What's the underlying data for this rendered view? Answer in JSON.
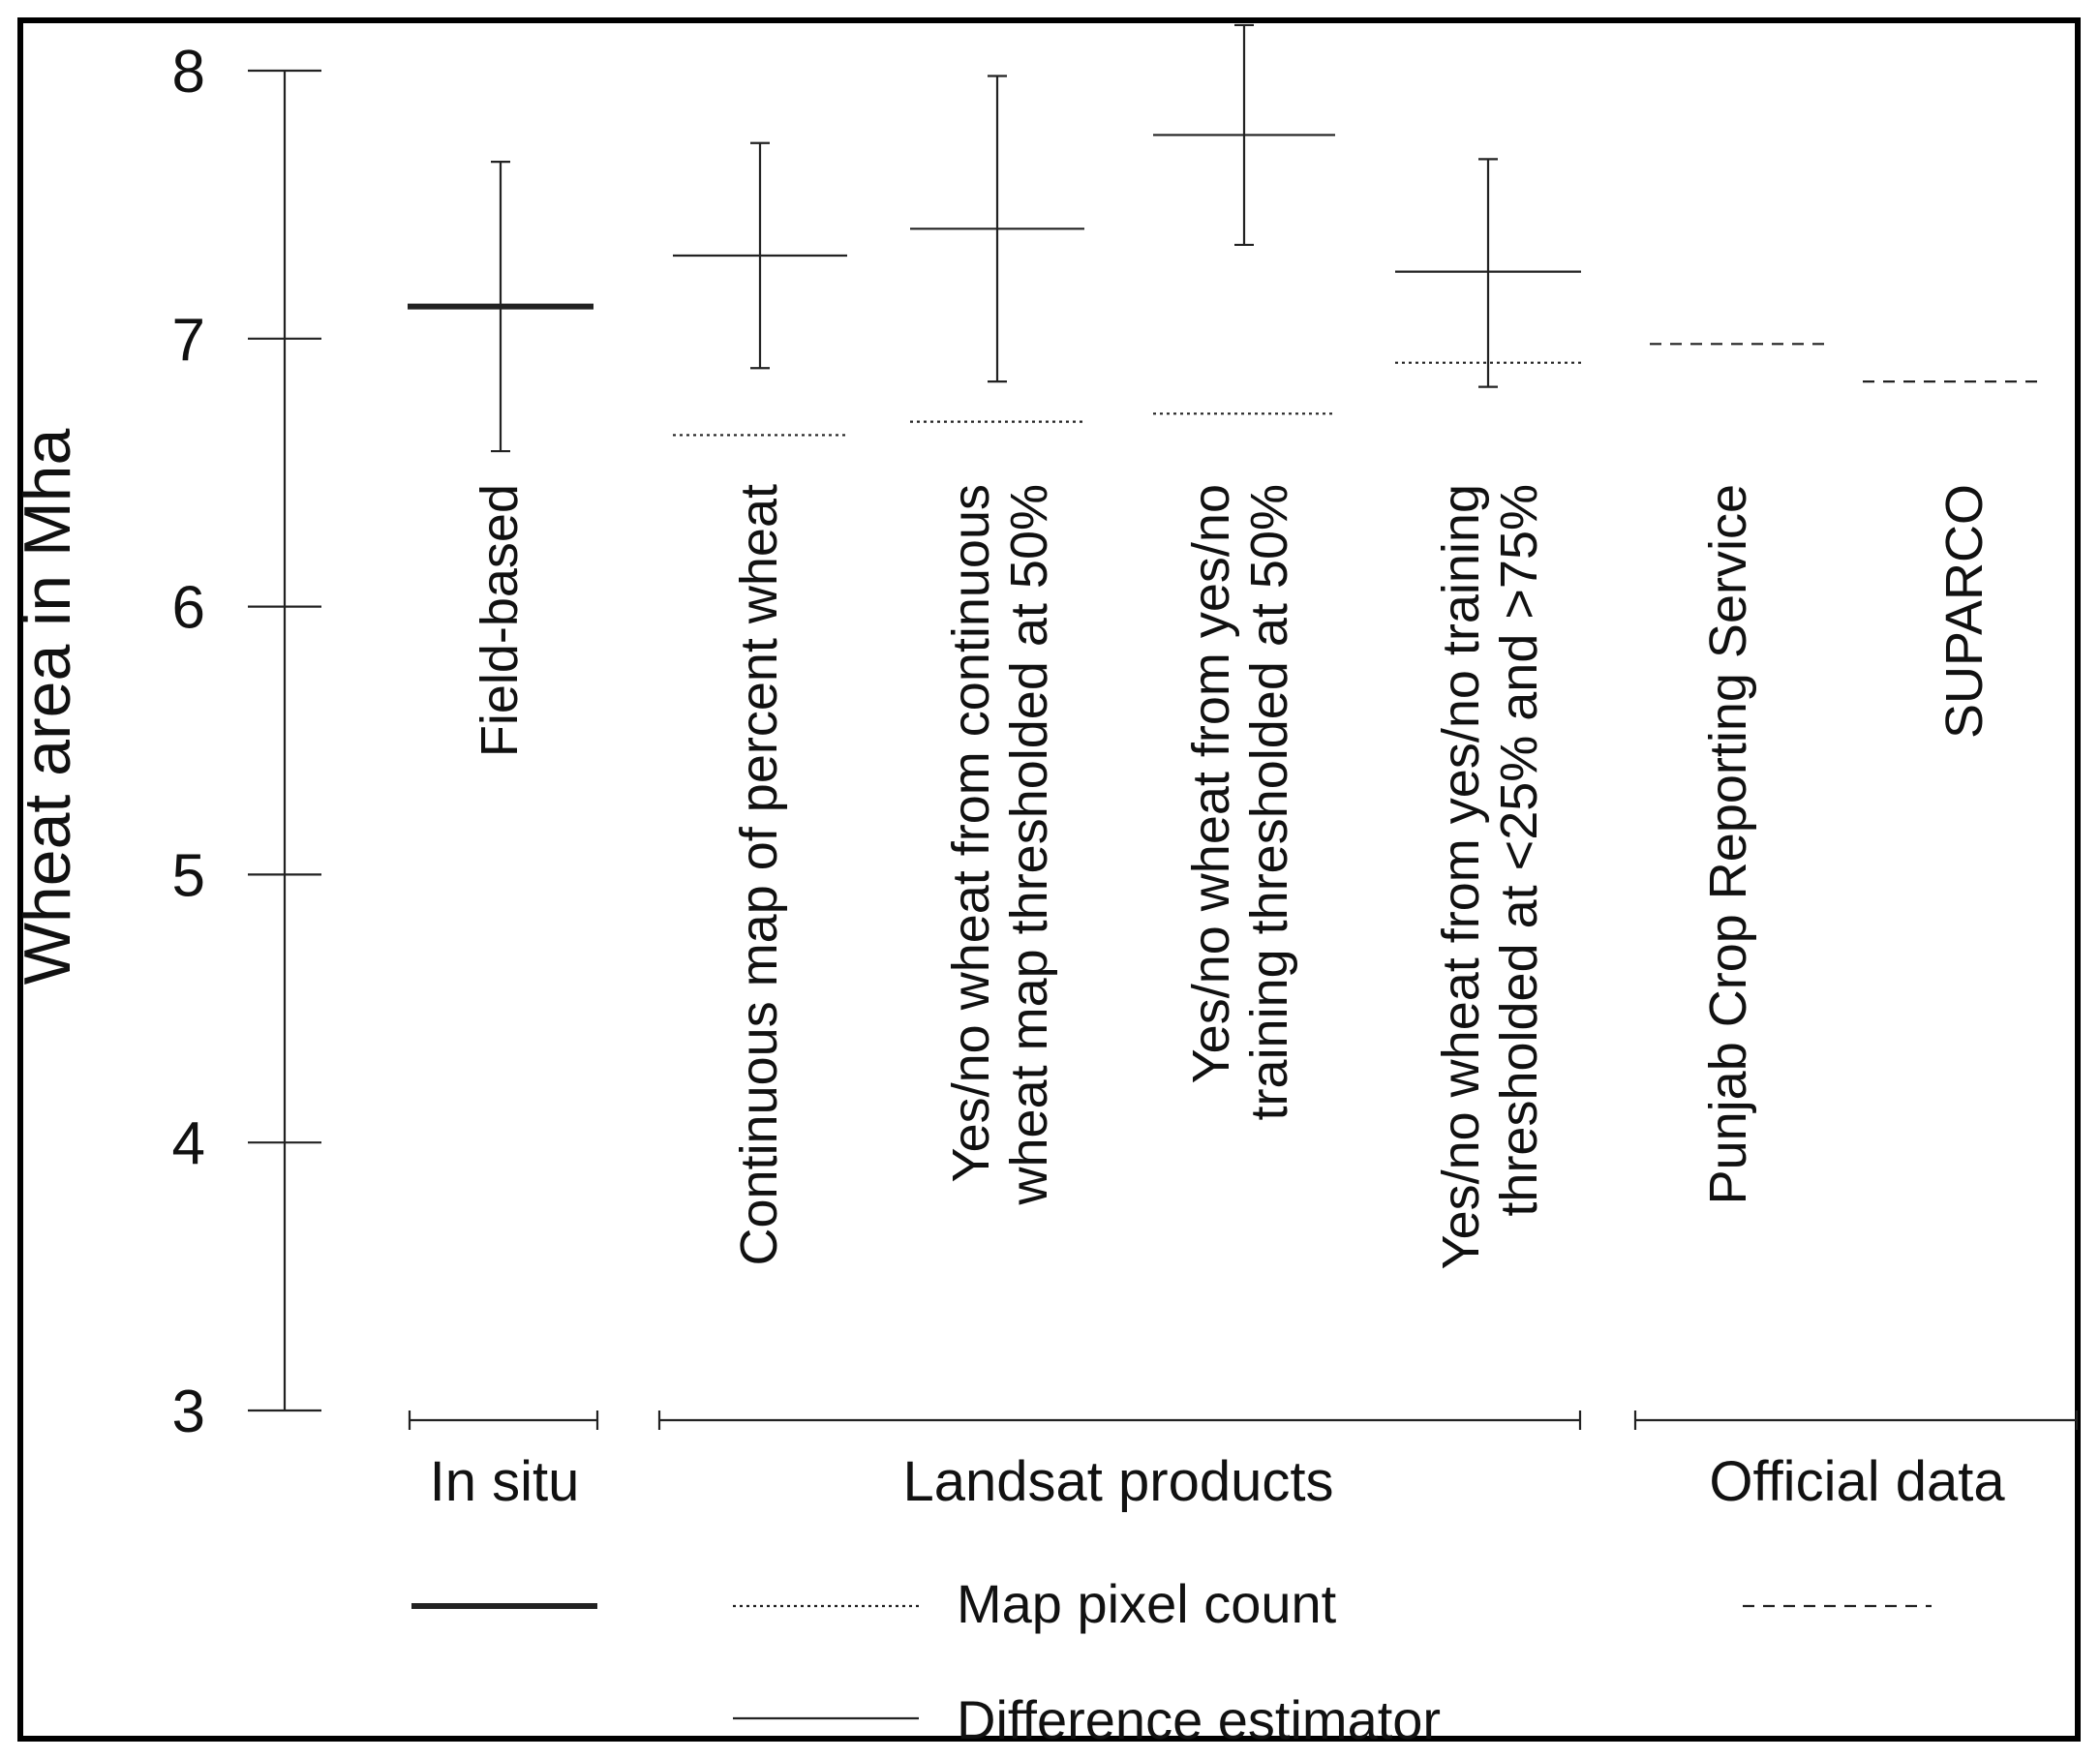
{
  "chart_data": {
    "type": "interval",
    "ylabel": "Wheat area in Mha",
    "ylim": [
      3,
      8
    ],
    "yticks": [
      3,
      4,
      5,
      6,
      7,
      8
    ],
    "categories": [
      "Field-based",
      "Continuous map of percent wheat",
      "Yes/no wheat from continuous wheat map thresholded at 50%",
      "Yes/no wheat from yes/no training thresholded at 50%",
      "Yes/no wheat from yes/no training thresholded at <25% and >75%",
      "Punjab Crop Reporting Service",
      "SUPARCO"
    ],
    "category_lines": [
      [
        "Field-based"
      ],
      [
        "Continuous map of percent wheat"
      ],
      [
        "Yes/no wheat from continuous",
        "wheat map thresholded at 50%"
      ],
      [
        "Yes/no wheat from yes/no",
        "training thresholded at 50%"
      ],
      [
        "Yes/no wheat from yes/no training",
        "thresholded at <25% and >75%"
      ],
      [
        "Punjab Crop Reporting Service"
      ],
      [
        "SUPARCO"
      ]
    ],
    "groups": [
      {
        "label": "In situ",
        "categories": [
          0
        ]
      },
      {
        "label": "Landsat products",
        "categories": [
          1,
          2,
          3,
          4
        ]
      },
      {
        "label": "Official data",
        "categories": [
          5,
          6
        ]
      }
    ],
    "series": [
      {
        "style": "thick-solid",
        "points": [
          {
            "category": 0,
            "estimate": 7.12,
            "low": 6.58,
            "high": 7.66
          }
        ]
      },
      {
        "style": "dotted",
        "points": [
          {
            "category": 1,
            "value": 6.64
          },
          {
            "category": 2,
            "value": 6.69
          },
          {
            "category": 3,
            "value": 6.72
          },
          {
            "category": 4,
            "value": 6.91
          }
        ]
      },
      {
        "style": "thin-solid",
        "points": [
          {
            "category": 1,
            "estimate": 7.31,
            "low": 6.89,
            "high": 7.73
          },
          {
            "category": 2,
            "estimate": 7.41,
            "low": 6.84,
            "high": 7.98
          },
          {
            "category": 3,
            "estimate": 7.76,
            "low": 7.35,
            "high": 8.17
          },
          {
            "category": 4,
            "estimate": 7.25,
            "low": 6.82,
            "high": 7.67
          }
        ]
      },
      {
        "style": "dashed",
        "points": [
          {
            "category": 5,
            "value": 6.98
          },
          {
            "category": 6,
            "value": 6.84
          }
        ]
      }
    ],
    "legend": [
      {
        "style": "thick-solid",
        "label": ""
      },
      {
        "style": "dotted",
        "label": "Map pixel count"
      },
      {
        "style": "dashed",
        "label": ""
      },
      {
        "style": "thin-solid",
        "label": "Difference estimator"
      }
    ],
    "grid": false,
    "legend_position": "bottom"
  }
}
